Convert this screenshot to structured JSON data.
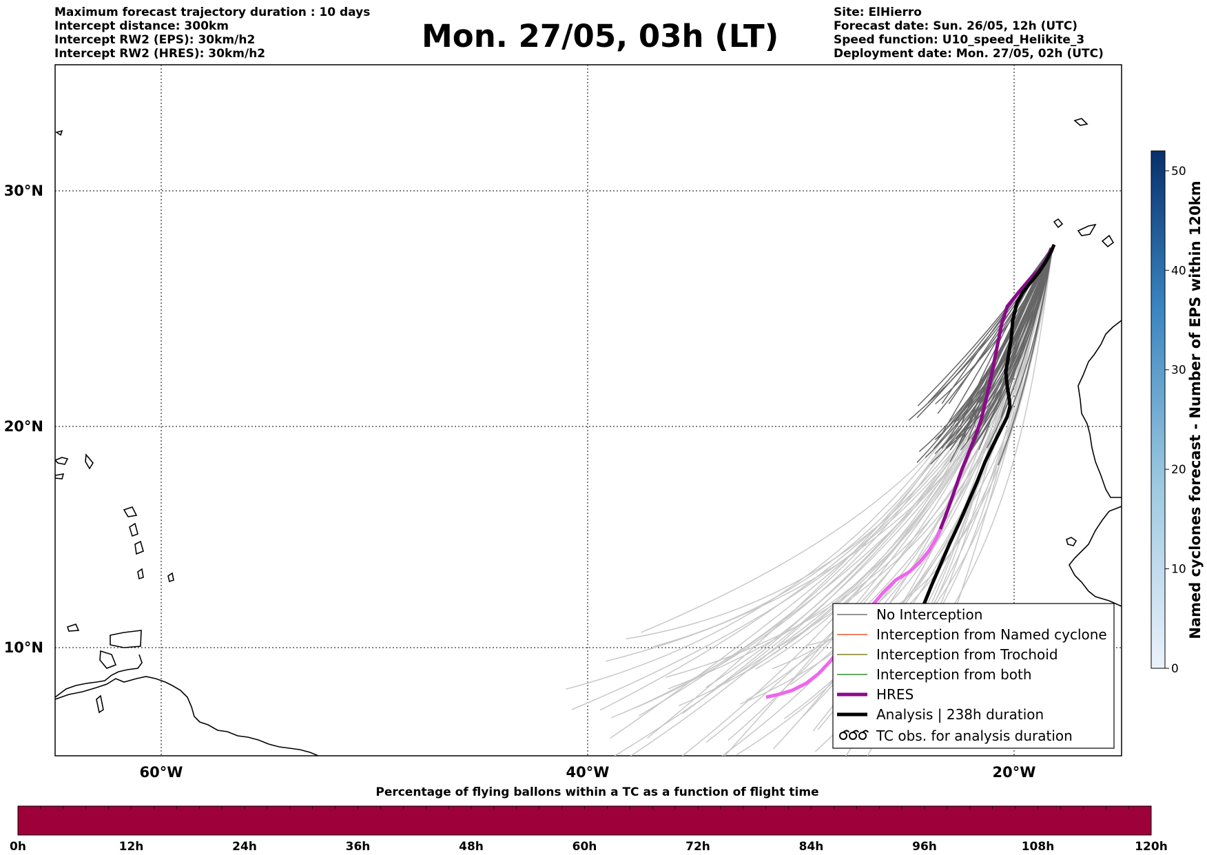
{
  "header": {
    "title": "Mon. 27/05, 03h (LT)",
    "left_lines": [
      "Maximum forecast trajectory duration : 10 days",
      "Intercept distance: 300km",
      "Intercept RW2 (EPS):  30km/h2",
      "Intercept RW2 (HRES): 30km/h2"
    ],
    "right_lines": [
      "Site: ElHierro",
      "Forecast date: Sun. 26/05, 12h (UTC)",
      "Speed function: U10_speed_Helikite_3",
      "Deployment date: Mon. 27/05, 02h (UTC)"
    ]
  },
  "map": {
    "lat_ticks": [
      "30°N",
      "20°N",
      "10°N"
    ],
    "lon_ticks": [
      "60°W",
      "40°W",
      "20°W"
    ],
    "gridlines": true,
    "colors": {
      "eps_recent": "#666666",
      "eps_old": "#c8c8c8",
      "hres": "#8b0a8b",
      "hres_old": "#ee66ee",
      "analysis": "#000000",
      "coast": "#000000"
    }
  },
  "legend": {
    "placement": "bottom-right",
    "items": [
      {
        "label": "No Interception",
        "color": "#707070",
        "style": "thin"
      },
      {
        "label": "Interception from Named cyclone",
        "color": "#e8552a",
        "style": "thin"
      },
      {
        "label": "Interception from Trochoid",
        "color": "#808020",
        "style": "thin"
      },
      {
        "label": "Interception from both",
        "color": "#2e8b2e",
        "style": "thin"
      },
      {
        "label": "HRES",
        "color": "#8b0a8b",
        "style": "thick"
      },
      {
        "label": "Analysis | 238h duration",
        "color": "#000000",
        "style": "thick"
      },
      {
        "label": "TC obs. for analysis duration",
        "color": "#000000",
        "style": "cyclone-icon"
      }
    ]
  },
  "colorbar_right": {
    "label": "Named cyclones forecast - Number of EPS within 120km",
    "ticks": [
      "0",
      "10",
      "20",
      "30",
      "40",
      "50"
    ],
    "min": 0,
    "max": 52,
    "color_low": "#e8f1fa",
    "color_high": "#08306b"
  },
  "colorbar_bottom": {
    "title": "Percentage of flying ballons within a TC as a function of flight time",
    "ticks": [
      "0h",
      "12h",
      "24h",
      "36h",
      "48h",
      "60h",
      "72h",
      "84h",
      "96h",
      "108h",
      "120h"
    ],
    "fill_color": "#9e003a"
  }
}
